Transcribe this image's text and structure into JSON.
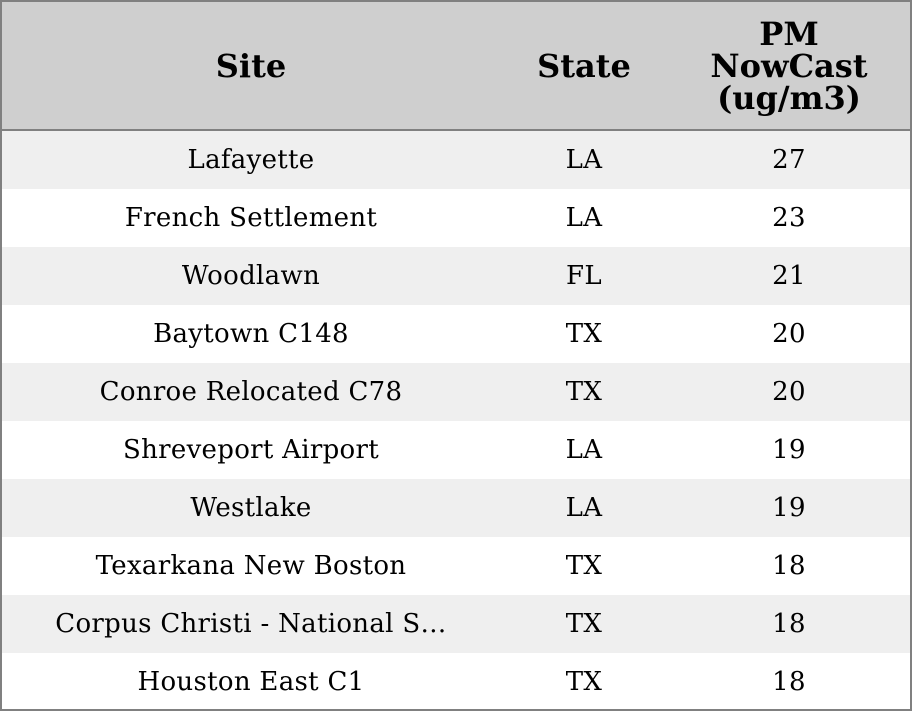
{
  "colors": {
    "header_bg": "#cfcfcf",
    "row_shade": "#efefef",
    "row_plain": "#ffffff",
    "border": "#808080",
    "text": "#000000"
  },
  "chart_data": {
    "type": "table",
    "columns": [
      "Site",
      "State",
      "PM NowCast (ug/m3)"
    ],
    "header_lines": {
      "site": "Site",
      "state": "State",
      "pm": [
        "PM",
        "NowCast",
        "(ug/m3)"
      ]
    },
    "rows": [
      {
        "site": "Lafayette",
        "state": "LA",
        "pm": 27
      },
      {
        "site": "French Settlement",
        "state": "LA",
        "pm": 23
      },
      {
        "site": "Woodlawn",
        "state": "FL",
        "pm": 21
      },
      {
        "site": "Baytown C148",
        "state": "TX",
        "pm": 20
      },
      {
        "site": "Conroe Relocated C78",
        "state": "TX",
        "pm": 20
      },
      {
        "site": "Shreveport Airport",
        "state": "LA",
        "pm": 19
      },
      {
        "site": "Westlake",
        "state": "LA",
        "pm": 19
      },
      {
        "site": "Texarkana New Boston",
        "state": "TX",
        "pm": 18
      },
      {
        "site": "Corpus Christi - National S…",
        "state": "TX",
        "pm": 18
      },
      {
        "site": "Houston East C1",
        "state": "TX",
        "pm": 18
      }
    ]
  }
}
